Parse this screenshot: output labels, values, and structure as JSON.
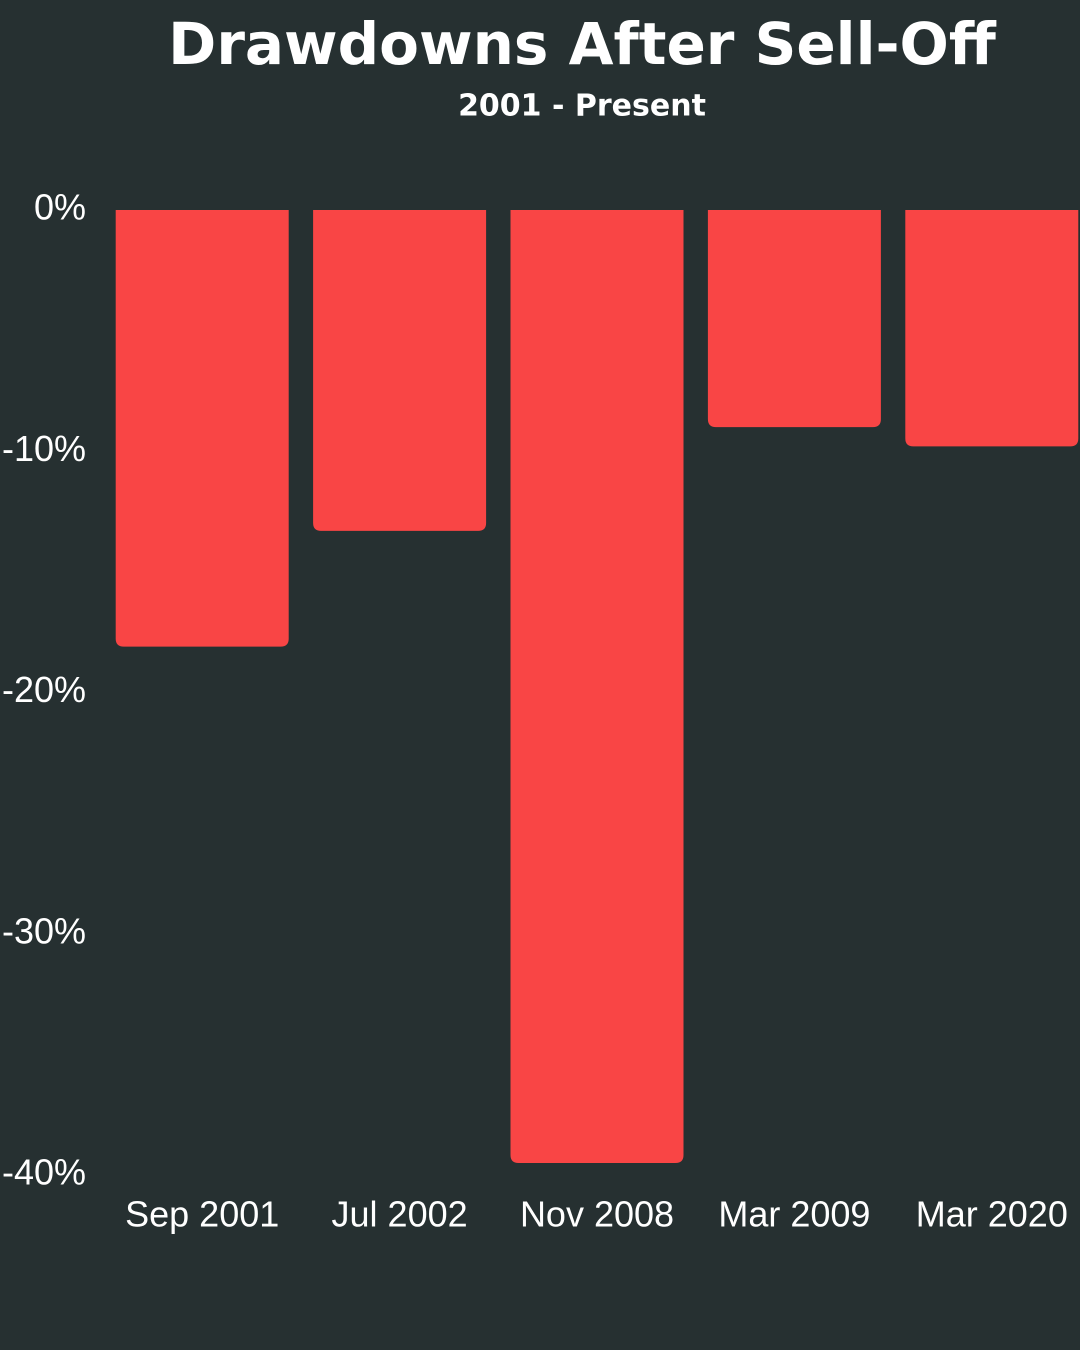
{
  "chart_data": {
    "type": "bar",
    "title": "Drawdowns After Sell-Off",
    "subtitle": "2001 - Present",
    "categories": [
      "Sep 2001",
      "Jul 2002",
      "Nov 2008",
      "Mar 2009",
      "Mar 2020"
    ],
    "values": [
      -18.1,
      -13.3,
      -39.5,
      -9.0,
      -9.8
    ],
    "color": "#f94545",
    "ylim": [
      -40,
      0
    ],
    "yticks": [
      {
        "value": 0,
        "label": "0%"
      },
      {
        "value": -10,
        "label": "-10%"
      },
      {
        "value": -20,
        "label": "-20%"
      },
      {
        "value": -30,
        "label": "-30%"
      },
      {
        "value": -40,
        "label": "-40%"
      }
    ],
    "grid": false
  }
}
